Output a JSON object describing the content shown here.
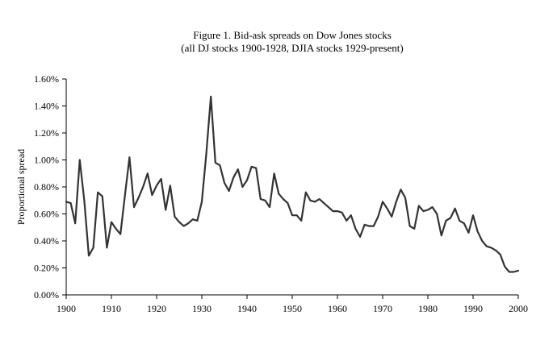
{
  "chart_data": {
    "type": "line",
    "title": "Figure 1.  Bid-ask spreads on Dow Jones stocks",
    "subtitle": "(all DJ stocks 1900-1928, DJIA stocks 1929-present)",
    "xlabel": "",
    "ylabel": "Proportional spread",
    "xlim": [
      1900,
      2000
    ],
    "ylim": [
      0,
      1.6
    ],
    "x_ticks": [
      "1900",
      "1910",
      "1920",
      "1930",
      "1940",
      "1950",
      "1960",
      "1970",
      "1980",
      "1990",
      "2000"
    ],
    "y_ticks": [
      "0.00%",
      "0.20%",
      "0.40%",
      "0.60%",
      "0.80%",
      "1.00%",
      "1.20%",
      "1.40%",
      "1.60%"
    ],
    "grid": false,
    "line_color": "#333333",
    "series": [
      {
        "x": [
          1900,
          1901,
          1902,
          1903,
          1904,
          1905,
          1906,
          1907,
          1908,
          1909,
          1910,
          1911,
          1912,
          1913,
          1914,
          1915,
          1916,
          1917,
          1918,
          1919,
          1920,
          1921,
          1922,
          1923,
          1924,
          1925,
          1926,
          1927,
          1928,
          1929,
          1930,
          1931,
          1932,
          1933,
          1934,
          1935,
          1936,
          1937,
          1938,
          1939,
          1940,
          1941,
          1942,
          1943,
          1944,
          1945,
          1946,
          1947,
          1948,
          1949,
          1950,
          1951,
          1952,
          1953,
          1954,
          1955,
          1956,
          1957,
          1958,
          1959,
          1960,
          1961,
          1962,
          1963,
          1964,
          1965,
          1966,
          1967,
          1968,
          1969,
          1970,
          1971,
          1972,
          1973,
          1974,
          1975,
          1976,
          1977,
          1978,
          1979,
          1980,
          1981,
          1982,
          1983,
          1984,
          1985,
          1986,
          1987,
          1988,
          1989,
          1990,
          1991,
          1992,
          1993,
          1994,
          1995,
          1996,
          1997,
          1998,
          1999,
          2000
        ],
        "values": [
          0.69,
          0.68,
          0.53,
          1.0,
          0.7,
          0.29,
          0.35,
          0.76,
          0.73,
          0.35,
          0.54,
          0.49,
          0.45,
          0.74,
          1.02,
          0.65,
          0.72,
          0.8,
          0.9,
          0.74,
          0.81,
          0.86,
          0.63,
          0.81,
          0.58,
          0.54,
          0.51,
          0.53,
          0.56,
          0.55,
          0.69,
          1.05,
          1.47,
          0.98,
          0.96,
          0.83,
          0.77,
          0.87,
          0.93,
          0.8,
          0.85,
          0.95,
          0.94,
          0.71,
          0.7,
          0.65,
          0.9,
          0.75,
          0.71,
          0.68,
          0.59,
          0.59,
          0.55,
          0.76,
          0.7,
          0.69,
          0.71,
          0.68,
          0.65,
          0.62,
          0.62,
          0.61,
          0.55,
          0.59,
          0.49,
          0.43,
          0.52,
          0.51,
          0.51,
          0.58,
          0.69,
          0.64,
          0.58,
          0.69,
          0.78,
          0.72,
          0.51,
          0.49,
          0.66,
          0.62,
          0.63,
          0.65,
          0.6,
          0.44,
          0.55,
          0.57,
          0.64,
          0.55,
          0.53,
          0.46,
          0.59,
          0.47,
          0.4,
          0.36,
          0.35,
          0.33,
          0.3,
          0.21,
          0.17,
          0.17,
          0.18
        ]
      }
    ]
  }
}
